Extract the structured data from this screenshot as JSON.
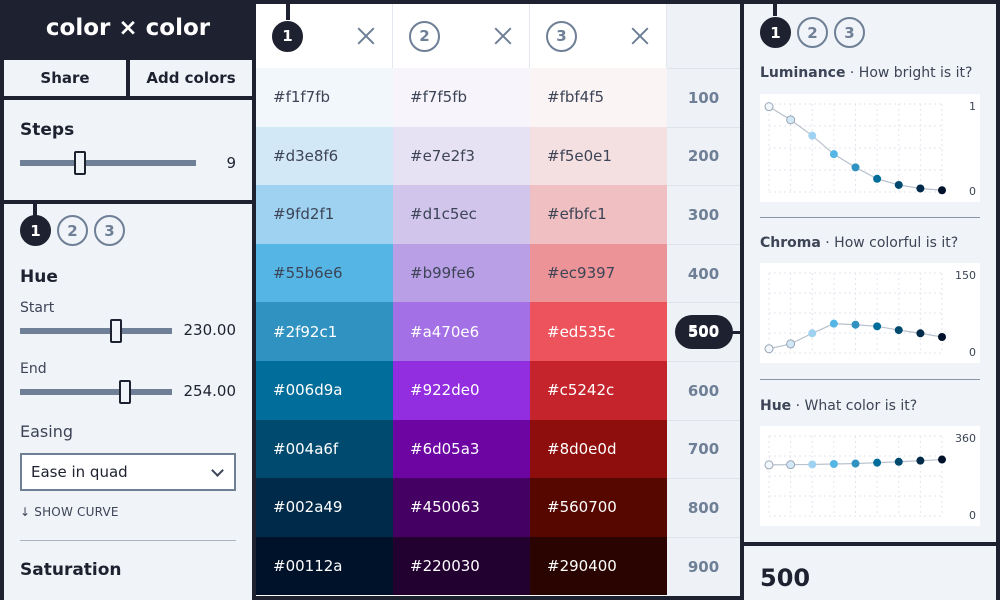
{
  "app": {
    "title": "color × color"
  },
  "toolbar": {
    "share_label": "Share",
    "add_colors_label": "Add colors"
  },
  "steps": {
    "title": "Steps",
    "value": "9",
    "fraction": 0.33
  },
  "curve_tabs": [
    "1",
    "2",
    "3"
  ],
  "hue": {
    "title": "Hue",
    "start_label": "Start",
    "start_value": "230.00",
    "start_fraction": 0.64,
    "end_label": "End",
    "end_value": "254.00",
    "end_fraction": 0.71,
    "easing_label": "Easing",
    "easing_value": "Ease in quad",
    "show_curve_label": "↓ SHOW CURVE"
  },
  "saturation": {
    "title": "Saturation"
  },
  "palette": {
    "columns": [
      {
        "label": "1",
        "swatches": [
          "#f1f7fb",
          "#d3e8f6",
          "#9fd2f1",
          "#55b6e6",
          "#2f92c1",
          "#006d9a",
          "#004a6f",
          "#002a49",
          "#00112a"
        ]
      },
      {
        "label": "2",
        "swatches": [
          "#f7f5fb",
          "#e7e2f3",
          "#d1c5ec",
          "#b99fe6",
          "#a470e6",
          "#922de0",
          "#6d05a3",
          "#450063",
          "#220030"
        ]
      },
      {
        "label": "3",
        "swatches": [
          "#fbf4f5",
          "#f5e0e1",
          "#efbfc1",
          "#ec9397",
          "#ed535c",
          "#c5242c",
          "#8d0e0d",
          "#560700",
          "#290400"
        ]
      }
    ],
    "scale": [
      "100",
      "200",
      "300",
      "400",
      "500",
      "600",
      "700",
      "800",
      "900"
    ],
    "active_scale_index": 4
  },
  "graph_tabs": [
    "1",
    "2",
    "3"
  ],
  "graphs": {
    "luminance": {
      "title": "Luminance",
      "subtitle": "· How bright is it?",
      "max_label": "1",
      "min_label": "0",
      "min": 0,
      "max": 1,
      "values": [
        0.97,
        0.82,
        0.64,
        0.43,
        0.28,
        0.15,
        0.08,
        0.04,
        0.02
      ]
    },
    "chroma": {
      "title": "Chroma",
      "subtitle": "· How colorful is it?",
      "max_label": "150",
      "min_label": "0",
      "min": 0,
      "max": 150,
      "values": [
        8,
        17,
        37,
        55,
        53,
        50,
        43,
        37,
        30
      ]
    },
    "hue": {
      "title": "Hue",
      "subtitle": "· What color is it?",
      "max_label": "360",
      "min_label": "0",
      "min": 0,
      "max": 360,
      "values": [
        230,
        231,
        232,
        234,
        236,
        240,
        244,
        249,
        254
      ]
    }
  },
  "point_colors": [
    "#f1f7fb",
    "#d3e8f6",
    "#9fd2f1",
    "#55b6e6",
    "#2f92c1",
    "#006d9a",
    "#004a6f",
    "#002a49",
    "#00112a"
  ],
  "selected": {
    "label": "500"
  }
}
